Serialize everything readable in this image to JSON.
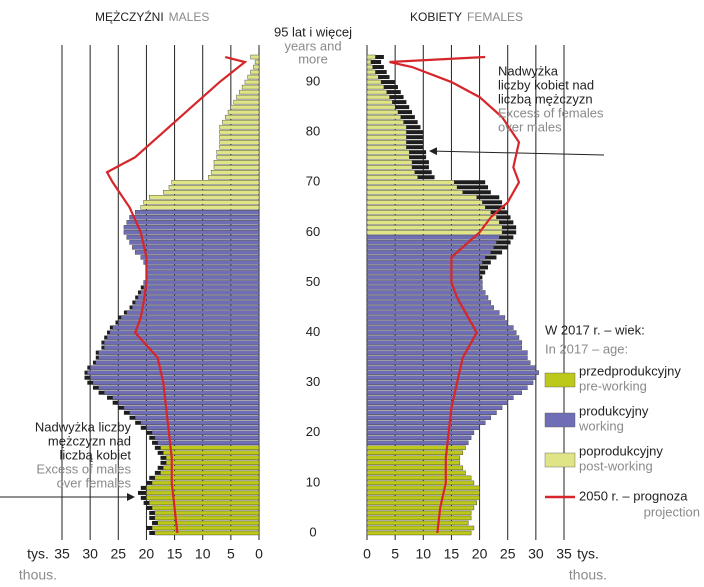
{
  "chart_data": {
    "type": "pyramid",
    "ylim": [
      -1,
      96
    ],
    "yticks": [
      0,
      10,
      20,
      30,
      40,
      50,
      60,
      70,
      80,
      90
    ],
    "top_label": "95 lat i więcej",
    "top_label_en": [
      "years and",
      "more"
    ],
    "excess_color": "#1e1e1e",
    "panels": [
      {
        "title": "MĘŻCZYŹNI",
        "title_en": "MALES",
        "unit": "tys.",
        "unit_en": "thous.",
        "xlim": [
          35,
          0
        ],
        "xticks": [
          35,
          30,
          25,
          20,
          15,
          10,
          5,
          0
        ],
        "group_bounds": [
          18,
          65
        ],
        "values": [
          19.5,
          20,
          19,
          19.5,
          19.5,
          20,
          20.5,
          21,
          21.5,
          21,
          20,
          19.5,
          18.5,
          18,
          17.5,
          17.5,
          18,
          18.5,
          19,
          19.5,
          20,
          21,
          22,
          23,
          24,
          25,
          26,
          27,
          28.5,
          29.5,
          30.5,
          31,
          31,
          30.5,
          29.5,
          29,
          29,
          28,
          28,
          27.5,
          27,
          26.5,
          25.5,
          25,
          24,
          23,
          22.5,
          22,
          21.5,
          21,
          20.5,
          20,
          20,
          20,
          20.5,
          21,
          22,
          22.5,
          23,
          23.5,
          24,
          24,
          23.5,
          23,
          22,
          21,
          20.5,
          19.5,
          17,
          16,
          15.5,
          9,
          8.5,
          8,
          8,
          7.5,
          7.5,
          7,
          7,
          7,
          7,
          7,
          6.5,
          6,
          5.5,
          5,
          4.5,
          4,
          3.5,
          3,
          2.5,
          2,
          1.5,
          1,
          0.7,
          1.5
        ],
        "projection": {
          "ages": [
            0,
            5,
            10,
            15,
            20,
            25,
            30,
            35,
            40,
            43,
            46,
            50,
            55,
            60,
            65,
            70,
            72,
            75,
            80,
            85,
            90,
            94,
            95
          ],
          "values": [
            14.5,
            15,
            15.5,
            15.5,
            16,
            16.5,
            17,
            18,
            22,
            21,
            20.5,
            20,
            20,
            21,
            23,
            26,
            27,
            22,
            17,
            12,
            7,
            2.5,
            6
          ]
        }
      },
      {
        "title": "KOBIETY",
        "title_en": "FEMALES",
        "unit": "tys.",
        "unit_en": "thous.",
        "xlim": [
          0,
          35
        ],
        "xticks": [
          0,
          5,
          10,
          15,
          20,
          25,
          30,
          35
        ],
        "group_bounds": [
          18,
          60
        ],
        "values": [
          18.5,
          19,
          18,
          18.5,
          18.5,
          19,
          19.5,
          20,
          20,
          20,
          19,
          18.5,
          17.5,
          17,
          16.5,
          16.5,
          17,
          17.5,
          18,
          18.5,
          19,
          20,
          21,
          22,
          23,
          24,
          25,
          26,
          27.5,
          28.5,
          29.5,
          30,
          30.5,
          30,
          29,
          28.5,
          28.5,
          27.5,
          27.5,
          27,
          26.5,
          26,
          25,
          24.5,
          23.5,
          22.5,
          22,
          21.5,
          21,
          20.5,
          20.5,
          20.5,
          21,
          21.5,
          22,
          23,
          24,
          25,
          25.5,
          26,
          26.5,
          26.5,
          26,
          25.5,
          25,
          24.5,
          24,
          23.5,
          22,
          21.5,
          21,
          12,
          11.5,
          11,
          11,
          10.5,
          10.5,
          10,
          10,
          10,
          10,
          9.5,
          9,
          8.5,
          8,
          7.5,
          7,
          6.5,
          6,
          5.5,
          5,
          4,
          3.5,
          3,
          2.5,
          3
        ],
        "projection": {
          "ages": [
            0,
            5,
            10,
            15,
            20,
            25,
            30,
            35,
            40,
            43,
            47,
            50,
            55,
            60,
            63,
            66,
            70,
            73,
            78,
            83,
            87,
            90,
            93,
            94,
            95
          ],
          "values": [
            12.5,
            13,
            14,
            14,
            14.5,
            15,
            16,
            17,
            19.5,
            18,
            16,
            15,
            15,
            20,
            22,
            25,
            27,
            26,
            27,
            24,
            20,
            15,
            8,
            4,
            21
          ]
        }
      }
    ],
    "legend_title": "W 2017 r. – wiek:",
    "legend_title_en": "In 2017 – age:",
    "groups": [
      {
        "name": "przedprodukcyjny",
        "name_en": "pre-working",
        "color": "#bcc81a"
      },
      {
        "name": "produkcyjny",
        "name_en": "working",
        "color": "#6e6db5"
      },
      {
        "name": "poprodukcyjny",
        "name_en": "post-working",
        "color": "#dfe486"
      }
    ],
    "projection_legend": {
      "name": "2050 r. – prognoza",
      "name_en": "projection",
      "color": "#d7262b"
    },
    "annotations": [
      {
        "lines": [
          "Nadwyżka",
          "liczby kobiet nad",
          "liczbą mężczyzn"
        ],
        "lines_en": [
          "Excess of females",
          "over males"
        ]
      },
      {
        "lines": [
          "Nadwyżka liczby",
          "mężczyzn nad",
          "liczbą kobiet"
        ],
        "lines_en": [
          "Excess of males",
          "over females"
        ]
      }
    ]
  }
}
